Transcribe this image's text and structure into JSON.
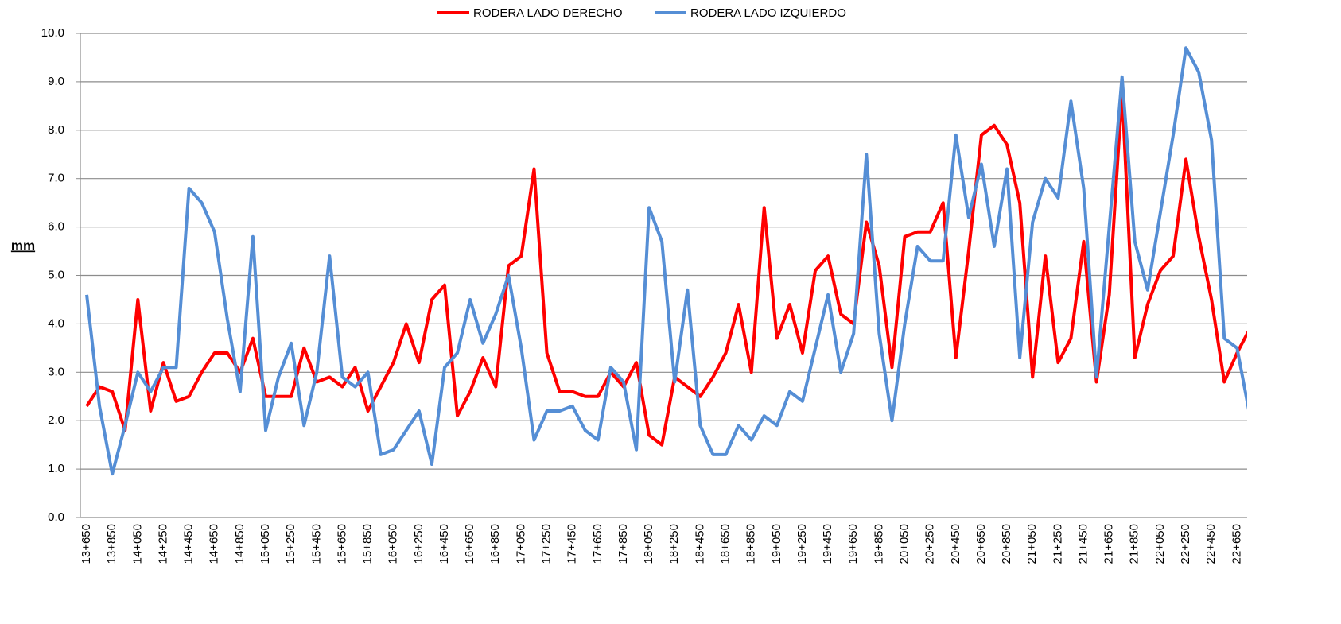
{
  "chart_data": {
    "type": "line",
    "y_label": "mm",
    "categories": [
      "13+650",
      null,
      "13+850",
      null,
      "14+050",
      null,
      "14+250",
      null,
      "14+450",
      null,
      "14+650",
      null,
      "14+850",
      null,
      "15+050",
      null,
      "15+250",
      null,
      "15+450",
      null,
      "15+650",
      null,
      "15+850",
      null,
      "16+050",
      null,
      "16+250",
      null,
      "16+450",
      null,
      "16+650",
      null,
      "16+850",
      null,
      "17+050",
      null,
      "17+250",
      null,
      "17+450",
      null,
      "17+650",
      null,
      "17+850",
      null,
      "18+050",
      null,
      "18+250",
      null,
      "18+450",
      null,
      "18+650",
      null,
      "18+850",
      null,
      "19+050",
      null,
      "19+250",
      null,
      "19+450",
      null,
      "19+650",
      null,
      "19+850",
      null,
      "20+050",
      null,
      "20+250",
      null,
      "20+450",
      null,
      "20+650",
      null,
      "20+850",
      null,
      "21+050",
      null,
      "21+250",
      null,
      "21+450",
      null,
      "21+650",
      null,
      "21+850",
      null,
      "22+050",
      null,
      "22+250",
      null,
      "22+450",
      null,
      "22+650",
      null
    ],
    "series": [
      {
        "name": "RODERA LADO DERECHO",
        "color": "#ff0000",
        "values": [
          2.3,
          2.7,
          2.6,
          1.8,
          4.5,
          2.2,
          3.2,
          2.4,
          2.5,
          3.0,
          3.4,
          3.4,
          3.0,
          3.7,
          2.5,
          2.5,
          2.5,
          3.5,
          2.8,
          2.9,
          2.7,
          3.1,
          2.2,
          2.7,
          3.2,
          4.0,
          3.2,
          4.5,
          4.8,
          2.1,
          2.6,
          3.3,
          2.7,
          5.2,
          5.4,
          7.2,
          3.4,
          2.6,
          2.6,
          2.5,
          2.5,
          3.0,
          2.7,
          3.2,
          1.7,
          1.5,
          2.9,
          2.7,
          2.5,
          2.9,
          3.4,
          4.4,
          3.0,
          6.4,
          3.7,
          4.4,
          3.4,
          5.1,
          5.4,
          4.2,
          4.0,
          6.1,
          5.2,
          3.1,
          5.8,
          5.9,
          5.9,
          6.5,
          3.3,
          5.5,
          7.9,
          8.1,
          7.7,
          6.5,
          2.9,
          5.4,
          3.2,
          3.7,
          5.7,
          2.8,
          4.6,
          8.8,
          3.3,
          4.4,
          5.1,
          5.4,
          7.4,
          5.8,
          4.5,
          2.8,
          3.4,
          3.9
        ]
      },
      {
        "name": "RODERA LADO IZQUIERDO",
        "color": "#558ed5",
        "values": [
          4.6,
          2.3,
          0.9,
          1.9,
          3.0,
          2.6,
          3.1,
          3.1,
          6.8,
          6.5,
          5.9,
          4.1,
          2.6,
          5.8,
          1.8,
          2.9,
          3.6,
          1.9,
          3.0,
          5.4,
          2.9,
          2.7,
          3.0,
          1.3,
          1.4,
          1.8,
          2.2,
          1.1,
          3.1,
          3.4,
          4.5,
          3.6,
          4.2,
          5.0,
          3.5,
          1.6,
          2.2,
          2.2,
          2.3,
          1.8,
          1.6,
          3.1,
          2.8,
          1.4,
          6.4,
          5.7,
          2.8,
          4.7,
          1.9,
          1.3,
          1.3,
          1.9,
          1.6,
          2.1,
          1.9,
          2.6,
          2.4,
          3.5,
          4.6,
          3.0,
          3.8,
          7.5,
          3.8,
          2.0,
          4.0,
          5.6,
          5.3,
          5.3,
          7.9,
          6.2,
          7.3,
          5.6,
          7.2,
          3.3,
          6.1,
          7.0,
          6.6,
          8.6,
          6.8,
          2.9,
          6.0,
          9.1,
          5.7,
          4.7,
          6.3,
          7.9,
          9.7,
          9.2,
          7.8,
          3.7,
          3.5,
          2.1
        ]
      }
    ],
    "ylim": [
      0,
      10
    ],
    "yticks": [
      {
        "value": 0,
        "label": "0.0"
      },
      {
        "value": 1,
        "label": "1.0"
      },
      {
        "value": 2,
        "label": "2.0"
      },
      {
        "value": 3,
        "label": "3.0"
      },
      {
        "value": 4,
        "label": "4.0"
      },
      {
        "value": 5,
        "label": "5.0"
      },
      {
        "value": 6,
        "label": "6.0"
      },
      {
        "value": 7,
        "label": "7.0"
      },
      {
        "value": 8,
        "label": "8.0"
      },
      {
        "value": 9,
        "label": "9.0"
      },
      {
        "value": 10,
        "label": "10.0"
      }
    ],
    "grid": true,
    "legend": "top"
  }
}
